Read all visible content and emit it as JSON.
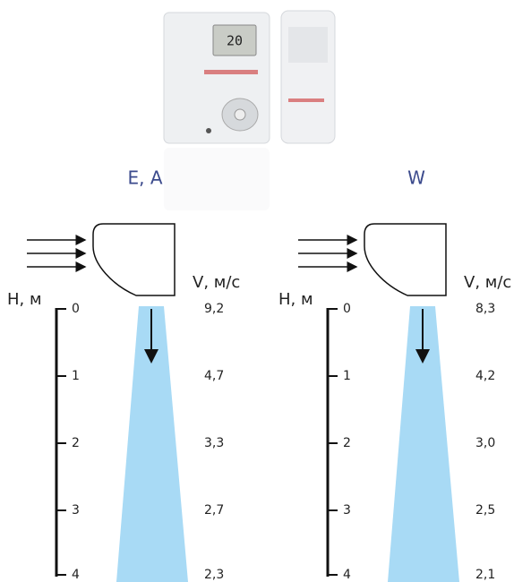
{
  "product_image": {
    "display": "20"
  },
  "panels": [
    {
      "title": "E, A",
      "height_label": "H, м",
      "velocity_label": "V, м/с",
      "heights": [
        0,
        1,
        2,
        3,
        4
      ],
      "velocities": [
        "9,2",
        "4,7",
        "3,3",
        "2,7",
        "2,3"
      ]
    },
    {
      "title": "W",
      "height_label": "H, м",
      "velocity_label": "V, м/с",
      "heights": [
        0,
        1,
        2,
        3,
        4
      ],
      "velocities": [
        "8,3",
        "4,2",
        "3,0",
        "2,5",
        "2,1"
      ]
    }
  ]
}
